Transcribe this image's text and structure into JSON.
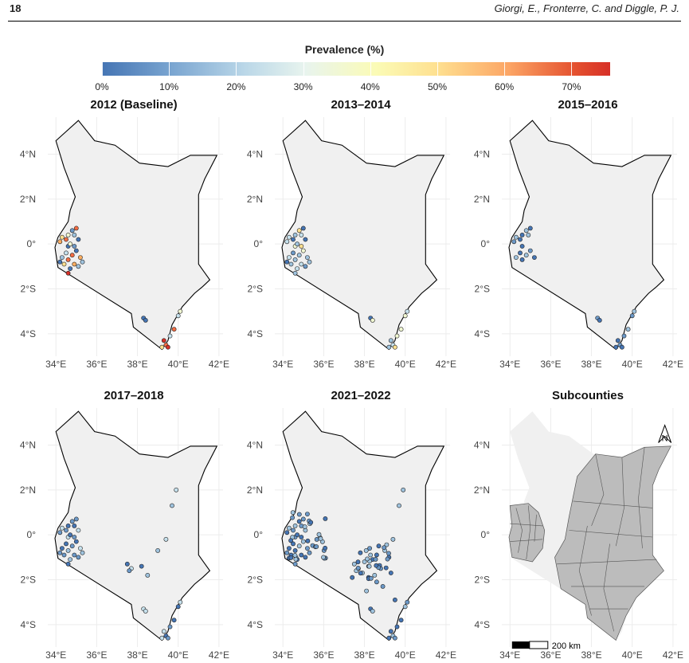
{
  "page": {
    "number": "18",
    "running_head": "Giorgi, E., Fronterre, C. and Diggle, P. J."
  },
  "legend": {
    "title": "Prevalence (%)",
    "labels": [
      "0%",
      "10%",
      "20%",
      "30%",
      "40%",
      "50%",
      "60%",
      "70%"
    ]
  },
  "panels": [
    {
      "title": "2012 (Baseline)"
    },
    {
      "title": "2013–2014"
    },
    {
      "title": "2015–2016"
    },
    {
      "title": "2017–2018"
    },
    {
      "title": "2021–2022"
    },
    {
      "title": "Subcounties"
    }
  ],
  "axes": {
    "x_ticks": [
      "34°E",
      "36°E",
      "38°E",
      "40°E",
      "42°E"
    ],
    "y_ticks": [
      "4°N",
      "2°N",
      "0°",
      "2°S",
      "4°S"
    ]
  },
  "subcounties": {
    "scale_label": "200 km",
    "north_label": "N"
  },
  "colors": {
    "low": "#4575b4",
    "mid": "#fbfbb6",
    "high": "#d73027",
    "map_fill": "#f0f0f0",
    "subcounty_fill": "#bcbcbc"
  }
}
